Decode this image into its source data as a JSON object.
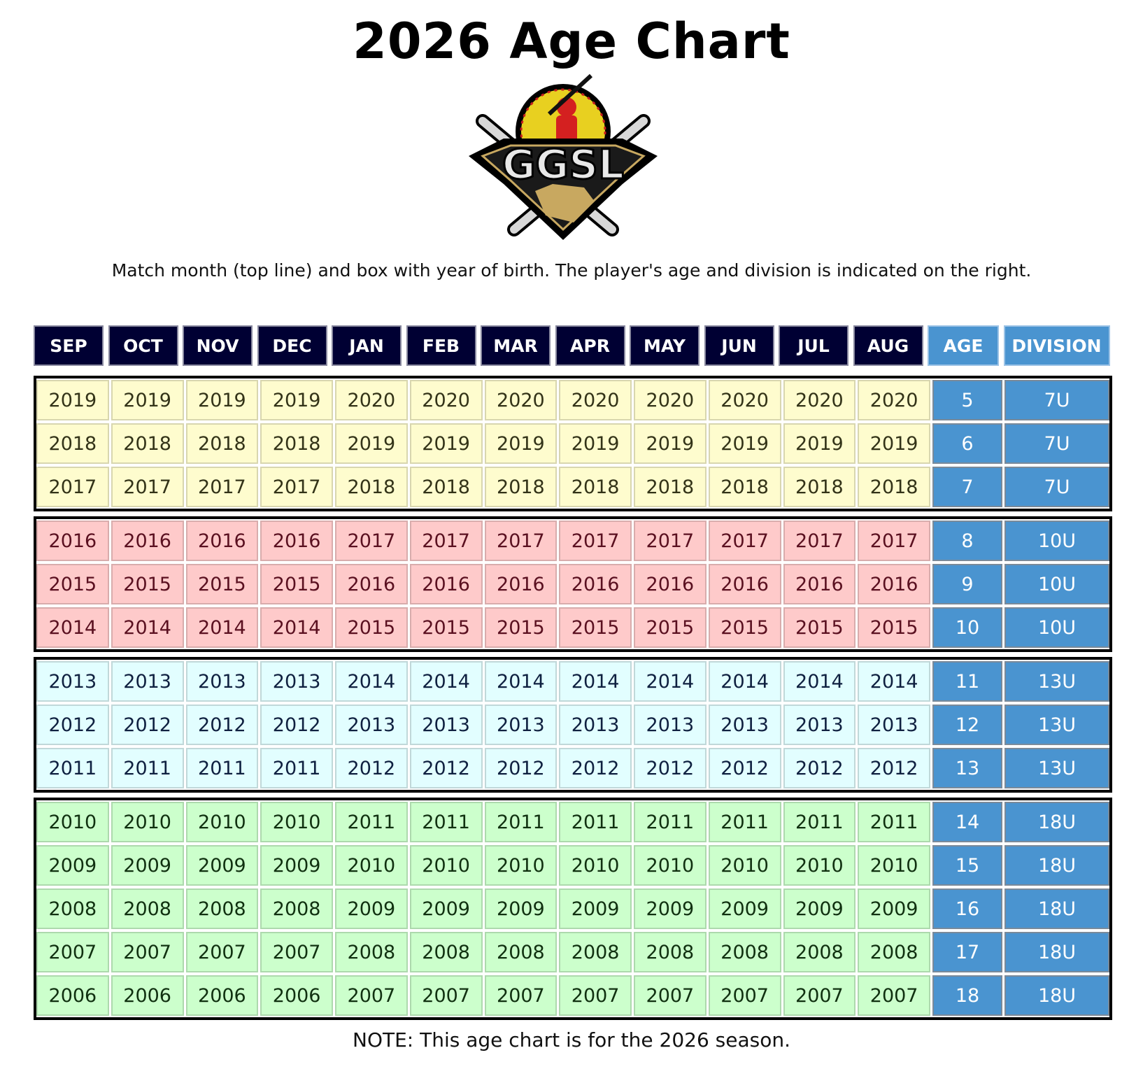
{
  "title": "2026 Age Chart",
  "logo": {
    "text": "GGSL"
  },
  "subtitle": "Match month (top line) and box with year of birth. The player's age and division is indicated on the right.",
  "note": "NOTE: This age chart is for the 2026 season.",
  "colors": {
    "header": "#000033",
    "age_division": "#4a94d0",
    "7U": "#fefcce",
    "10U": "#fecaca",
    "13U": "#e2feff",
    "18U": "#ccffcc"
  },
  "headers": [
    "SEP",
    "OCT",
    "NOV",
    "DEC",
    "JAN",
    "FEB",
    "MAR",
    "APR",
    "MAY",
    "JUN",
    "JUL",
    "AUG",
    "AGE",
    "DIVISION"
  ],
  "groups": [
    {
      "division": "7U",
      "rows": [
        {
          "years": [
            "2019",
            "2019",
            "2019",
            "2019",
            "2020",
            "2020",
            "2020",
            "2020",
            "2020",
            "2020",
            "2020",
            "2020"
          ],
          "age": "5",
          "division": "7U"
        },
        {
          "years": [
            "2018",
            "2018",
            "2018",
            "2018",
            "2019",
            "2019",
            "2019",
            "2019",
            "2019",
            "2019",
            "2019",
            "2019"
          ],
          "age": "6",
          "division": "7U"
        },
        {
          "years": [
            "2017",
            "2017",
            "2017",
            "2017",
            "2018",
            "2018",
            "2018",
            "2018",
            "2018",
            "2018",
            "2018",
            "2018"
          ],
          "age": "7",
          "division": "7U"
        }
      ]
    },
    {
      "division": "10U",
      "rows": [
        {
          "years": [
            "2016",
            "2016",
            "2016",
            "2016",
            "2017",
            "2017",
            "2017",
            "2017",
            "2017",
            "2017",
            "2017",
            "2017"
          ],
          "age": "8",
          "division": "10U"
        },
        {
          "years": [
            "2015",
            "2015",
            "2015",
            "2015",
            "2016",
            "2016",
            "2016",
            "2016",
            "2016",
            "2016",
            "2016",
            "2016"
          ],
          "age": "9",
          "division": "10U"
        },
        {
          "years": [
            "2014",
            "2014",
            "2014",
            "2014",
            "2015",
            "2015",
            "2015",
            "2015",
            "2015",
            "2015",
            "2015",
            "2015"
          ],
          "age": "10",
          "division": "10U"
        }
      ]
    },
    {
      "division": "13U",
      "rows": [
        {
          "years": [
            "2013",
            "2013",
            "2013",
            "2013",
            "2014",
            "2014",
            "2014",
            "2014",
            "2014",
            "2014",
            "2014",
            "2014"
          ],
          "age": "11",
          "division": "13U"
        },
        {
          "years": [
            "2012",
            "2012",
            "2012",
            "2012",
            "2013",
            "2013",
            "2013",
            "2013",
            "2013",
            "2013",
            "2013",
            "2013"
          ],
          "age": "12",
          "division": "13U"
        },
        {
          "years": [
            "2011",
            "2011",
            "2011",
            "2011",
            "2012",
            "2012",
            "2012",
            "2012",
            "2012",
            "2012",
            "2012",
            "2012"
          ],
          "age": "13",
          "division": "13U"
        }
      ]
    },
    {
      "division": "18U",
      "rows": [
        {
          "years": [
            "2010",
            "2010",
            "2010",
            "2010",
            "2011",
            "2011",
            "2011",
            "2011",
            "2011",
            "2011",
            "2011",
            "2011"
          ],
          "age": "14",
          "division": "18U"
        },
        {
          "years": [
            "2009",
            "2009",
            "2009",
            "2009",
            "2010",
            "2010",
            "2010",
            "2010",
            "2010",
            "2010",
            "2010",
            "2010"
          ],
          "age": "15",
          "division": "18U"
        },
        {
          "years": [
            "2008",
            "2008",
            "2008",
            "2008",
            "2009",
            "2009",
            "2009",
            "2009",
            "2009",
            "2009",
            "2009",
            "2009"
          ],
          "age": "16",
          "division": "18U"
        },
        {
          "years": [
            "2007",
            "2007",
            "2007",
            "2007",
            "2008",
            "2008",
            "2008",
            "2008",
            "2008",
            "2008",
            "2008",
            "2008"
          ],
          "age": "17",
          "division": "18U"
        },
        {
          "years": [
            "2006",
            "2006",
            "2006",
            "2006",
            "2007",
            "2007",
            "2007",
            "2007",
            "2007",
            "2007",
            "2007",
            "2007"
          ],
          "age": "18",
          "division": "18U"
        }
      ]
    }
  ]
}
